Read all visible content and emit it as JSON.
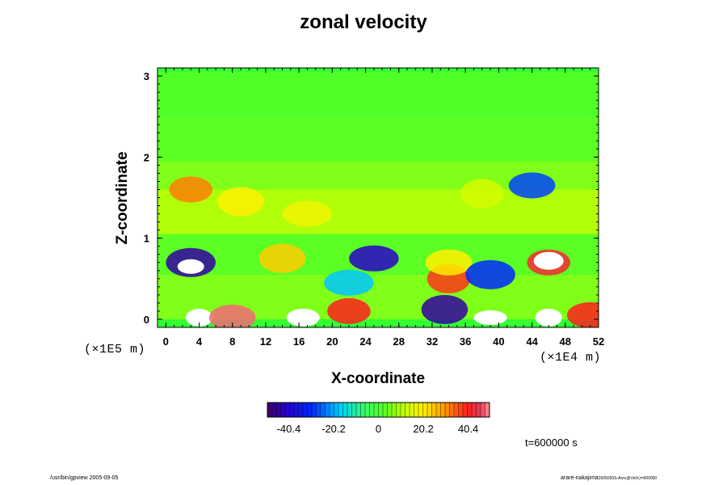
{
  "chart_data": {
    "type": "heatmap",
    "title": "zonal velocity",
    "xlabel": "X-coordinate",
    "ylabel": "Z-coordinate",
    "x_unit": "(×1E4 m)",
    "y_unit": "(×1E5 m)",
    "xlim": [
      -1,
      52
    ],
    "ylim": [
      -0.1,
      3.1
    ],
    "x_ticks": [
      0,
      4,
      8,
      12,
      16,
      20,
      24,
      28,
      32,
      36,
      40,
      44,
      48,
      52
    ],
    "y_ticks": [
      0,
      1,
      2,
      3
    ],
    "colorbar": {
      "vmin": -50,
      "vmax": 50,
      "ticks": [
        -40.4,
        -20.2,
        0,
        20.2,
        40.4
      ],
      "tick_labels": [
        "-40.4",
        "-20.2",
        "0",
        "20.2",
        "40.4"
      ]
    },
    "time_label": "t=600000 s",
    "features": [
      {
        "x": 3,
        "z": 1.6,
        "value": 32
      },
      {
        "x": 9,
        "z": 1.45,
        "value": 20
      },
      {
        "x": 17,
        "z": 1.3,
        "value": 18
      },
      {
        "x": 38,
        "z": 1.55,
        "value": 14
      },
      {
        "x": 44,
        "z": 1.65,
        "value": -28
      },
      {
        "x": 3,
        "z": 0.7,
        "value": -45
      },
      {
        "x": 3,
        "z": 0.65,
        "value": -55
      },
      {
        "x": 14,
        "z": 0.75,
        "value": 24
      },
      {
        "x": 25,
        "z": 0.75,
        "value": -42
      },
      {
        "x": 34,
        "z": 0.5,
        "value": 38
      },
      {
        "x": 34,
        "z": 0.7,
        "value": 20
      },
      {
        "x": 39,
        "z": 0.55,
        "value": -30
      },
      {
        "x": 46,
        "z": 0.7,
        "value": 42
      },
      {
        "x": 46,
        "z": 0.72,
        "value": 55
      },
      {
        "x": 22,
        "z": 0.45,
        "value": -18
      },
      {
        "x": 4,
        "z": 0.02,
        "value": 52
      },
      {
        "x": 8,
        "z": 0.02,
        "value": 48
      },
      {
        "x": 16.5,
        "z": 0.02,
        "value": -52
      },
      {
        "x": 22,
        "z": 0.1,
        "value": 40
      },
      {
        "x": 33.5,
        "z": 0.12,
        "value": -45
      },
      {
        "x": 39,
        "z": 0.02,
        "value": 52
      },
      {
        "x": 46,
        "z": 0.02,
        "value": -55
      },
      {
        "x": 51,
        "z": 0.05,
        "value": 40
      }
    ]
  },
  "footer": {
    "left": "/usr/bin/gpview 2005-09-05",
    "right_main": "arare-nakajima",
    "right_sub": "2005050S-Arec@VelX,t=600000"
  }
}
